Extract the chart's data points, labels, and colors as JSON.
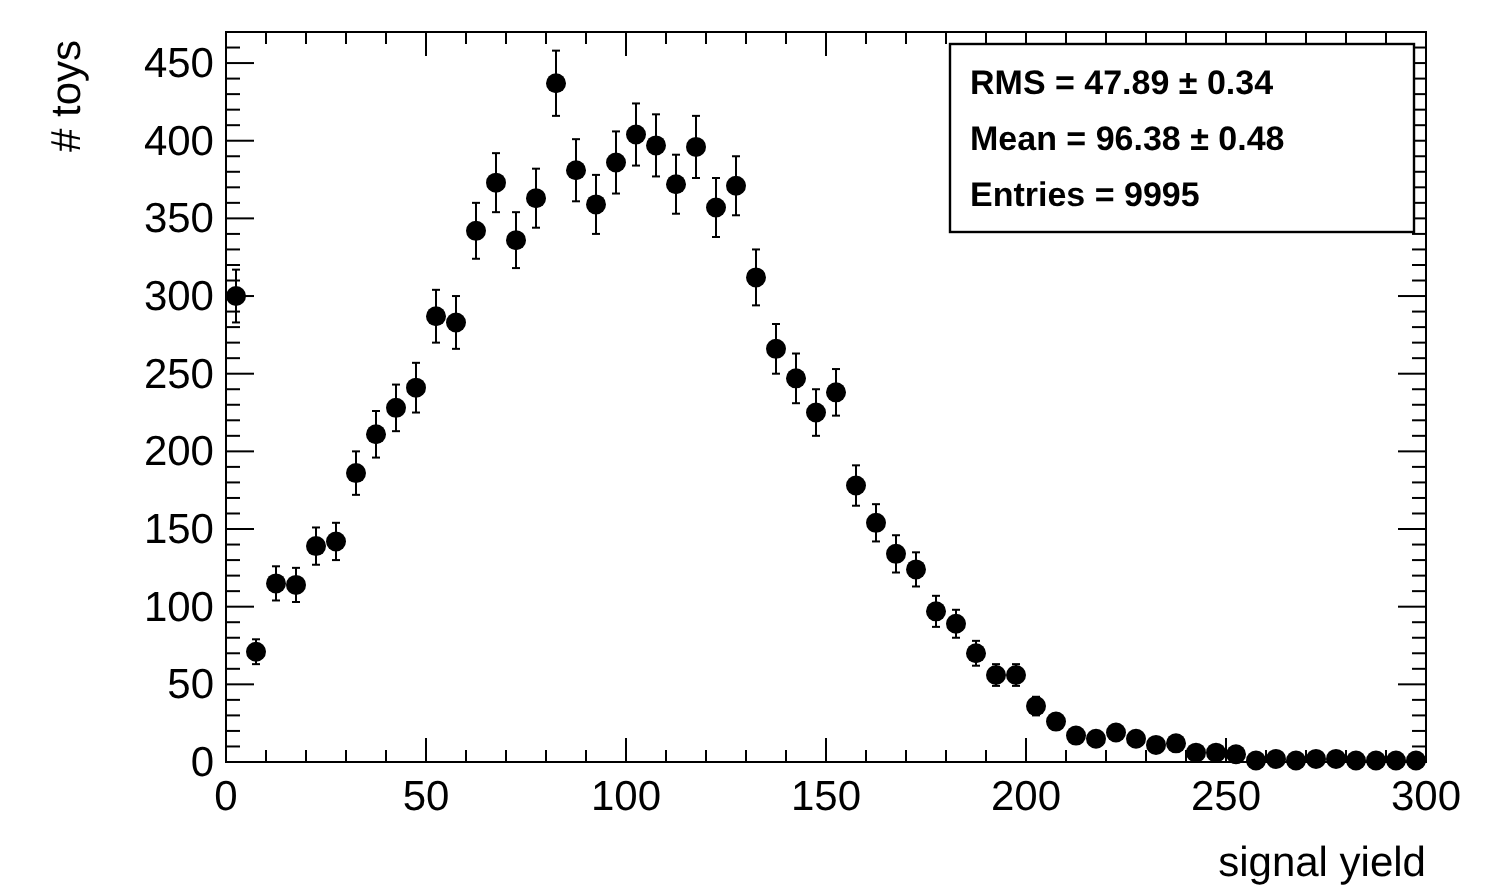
{
  "chart_data": {
    "type": "scatter",
    "xlabel": "signal yield",
    "ylabel": "# toys",
    "x": [
      2.5,
      7.5,
      12.5,
      17.5,
      22.5,
      27.5,
      32.5,
      37.5,
      42.5,
      47.5,
      52.5,
      57.5,
      62.5,
      67.5,
      72.5,
      77.5,
      82.5,
      87.5,
      92.5,
      97.5,
      102.5,
      107.5,
      112.5,
      117.5,
      122.5,
      127.5,
      132.5,
      137.5,
      142.5,
      147.5,
      152.5,
      157.5,
      162.5,
      167.5,
      172.5,
      177.5,
      182.5,
      187.5,
      192.5,
      197.5,
      202.5,
      207.5,
      212.5,
      217.5,
      222.5,
      227.5,
      232.5,
      237.5,
      242.5,
      247.5,
      252.5,
      257.5,
      262.5,
      267.5,
      272.5,
      277.5,
      282.5,
      287.5,
      292.5,
      297.5
    ],
    "series": [
      {
        "color": "#000000",
        "values": [
          300,
          71,
          115,
          114,
          139,
          142,
          186,
          211,
          228,
          241,
          287,
          283,
          342,
          373,
          336,
          363,
          437,
          381,
          359,
          386,
          404,
          397,
          372,
          396,
          357,
          371,
          312,
          266,
          247,
          225,
          238,
          178,
          154,
          134,
          124,
          97,
          89,
          70,
          56,
          56,
          36,
          26,
          17,
          15,
          19,
          15,
          11,
          12,
          6,
          6,
          5,
          1,
          2,
          1,
          2,
          2,
          1,
          1,
          1,
          1
        ],
        "errors": [
          17,
          8,
          11,
          11,
          12,
          12,
          14,
          15,
          15,
          16,
          17,
          17,
          18,
          19,
          18,
          19,
          21,
          20,
          19,
          20,
          20,
          20,
          19,
          20,
          19,
          19,
          18,
          16,
          16,
          15,
          15,
          13,
          12,
          12,
          11,
          10,
          9,
          8,
          7,
          7,
          6,
          5,
          4,
          4,
          4,
          4,
          3,
          3,
          2,
          2,
          2,
          1,
          1,
          1,
          1,
          1,
          1,
          1,
          1,
          1
        ]
      }
    ],
    "xlim": [
      0,
      300
    ],
    "ylim": [
      0,
      470
    ],
    "xticks": [
      0,
      {
        "value": 10,
        "label": null
      },
      {
        "value": 20,
        "label": null
      },
      {
        "value": 30,
        "label": null
      },
      {
        "value": 40,
        "label": null
      },
      50,
      {
        "value": 60,
        "label": null
      },
      {
        "value": 70,
        "label": null
      },
      {
        "value": 80,
        "label": null
      },
      {
        "value": 90,
        "label": null
      },
      100,
      {
        "value": 110,
        "label": null
      },
      {
        "value": 120,
        "label": null
      },
      {
        "value": 130,
        "label": null
      },
      {
        "value": 140,
        "label": null
      },
      150,
      {
        "value": 160,
        "label": null
      },
      {
        "value": 170,
        "label": null
      },
      {
        "value": 180,
        "label": null
      },
      {
        "value": 190,
        "label": null
      },
      200,
      {
        "value": 210,
        "label": null
      },
      {
        "value": 220,
        "label": null
      },
      {
        "value": 230,
        "label": null
      },
      {
        "value": 240,
        "label": null
      },
      250,
      {
        "value": 260,
        "label": null
      },
      {
        "value": 270,
        "label": null
      },
      {
        "value": 280,
        "label": null
      },
      {
        "value": 290,
        "label": null
      },
      300
    ],
    "yticks": [
      0,
      {
        "value": 10,
        "label": null
      },
      {
        "value": 20,
        "label": null
      },
      {
        "value": 30,
        "label": null
      },
      {
        "value": 40,
        "label": null
      },
      50,
      {
        "value": 60,
        "label": null
      },
      {
        "value": 70,
        "label": null
      },
      {
        "value": 80,
        "label": null
      },
      {
        "value": 90,
        "label": null
      },
      100,
      {
        "value": 110,
        "label": null
      },
      {
        "value": 120,
        "label": null
      },
      {
        "value": 130,
        "label": null
      },
      {
        "value": 140,
        "label": null
      },
      150,
      {
        "value": 160,
        "label": null
      },
      {
        "value": 170,
        "label": null
      },
      {
        "value": 180,
        "label": null
      },
      {
        "value": 190,
        "label": null
      },
      200,
      {
        "value": 210,
        "label": null
      },
      {
        "value": 220,
        "label": null
      },
      {
        "value": 230,
        "label": null
      },
      {
        "value": 240,
        "label": null
      },
      250,
      {
        "value": 260,
        "label": null
      },
      {
        "value": 270,
        "label": null
      },
      {
        "value": 280,
        "label": null
      },
      {
        "value": 290,
        "label": null
      },
      300,
      {
        "value": 310,
        "label": null
      },
      {
        "value": 320,
        "label": null
      },
      {
        "value": 330,
        "label": null
      },
      {
        "value": 340,
        "label": null
      },
      350,
      {
        "value": 360,
        "label": null
      },
      {
        "value": 370,
        "label": null
      },
      {
        "value": 380,
        "label": null
      },
      {
        "value": 390,
        "label": null
      },
      400,
      {
        "value": 410,
        "label": null
      },
      {
        "value": 420,
        "label": null
      },
      {
        "value": 430,
        "label": null
      },
      {
        "value": 440,
        "label": null
      },
      450,
      {
        "value": 460,
        "label": null
      }
    ],
    "annotations": [
      "RMS =  47.89 ± 0.34",
      "Mean =  96.38 ± 0.48",
      "Entries =  9995"
    ],
    "marker": "circle"
  }
}
